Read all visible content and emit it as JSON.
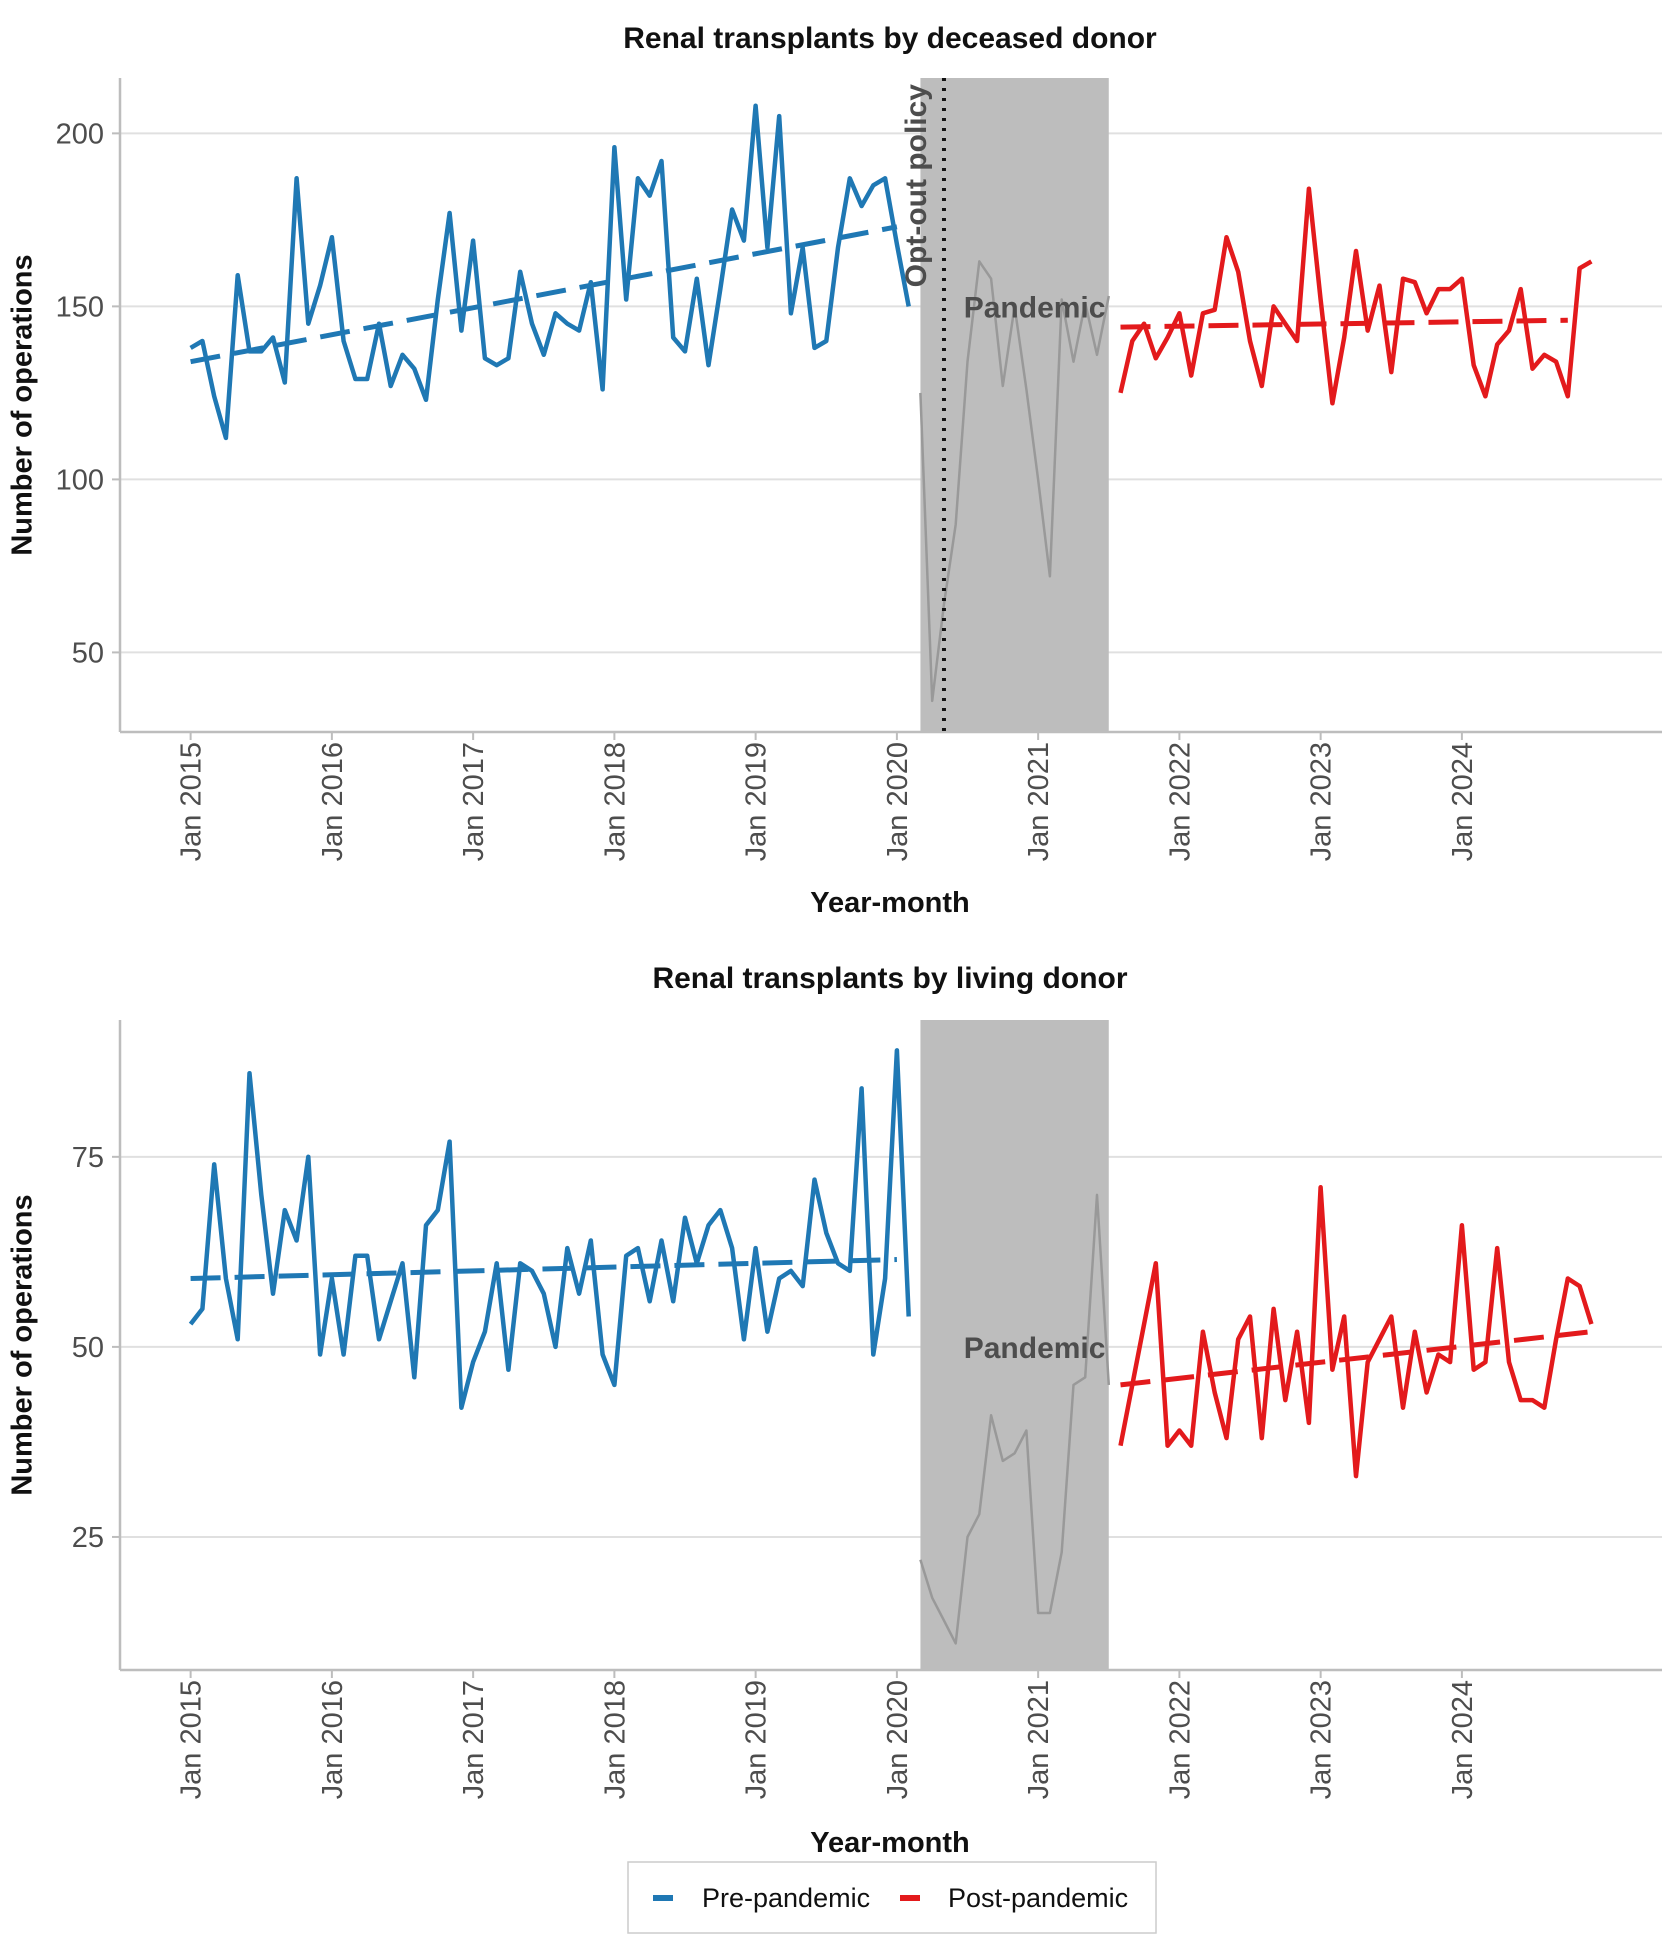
{
  "chart_data": [
    {
      "type": "line",
      "title": "Renal transplants by deceased donor",
      "xlabel": "Year-month",
      "ylabel": "Number of operations",
      "xlim": [
        "2014-07",
        "2025-06"
      ],
      "ylim": [
        27,
        216
      ],
      "yticks": [
        50,
        100,
        150,
        200
      ],
      "xticks": [
        "Jan 2015",
        "Jan 2016",
        "Jan 2017",
        "Jan 2018",
        "Jan 2019",
        "Jan 2020",
        "Jan 2021",
        "Jan 2022",
        "Jan 2023",
        "Jan 2024"
      ],
      "grid": "horizontal",
      "shaded_region": {
        "start": "2020-03",
        "end": "2021-07",
        "label": "Pandemic",
        "color": "#bdbdbd"
      },
      "vline": {
        "x": "2020-05",
        "label": "Opt-out policy",
        "style": "dotted"
      },
      "series": [
        {
          "name": "Pre-pandemic",
          "color": "#1f78b4",
          "style": "solid",
          "start": "2015-01",
          "values": [
            138,
            140,
            124,
            112,
            159,
            137,
            137,
            141,
            128,
            187,
            145,
            156,
            170,
            140,
            129,
            129,
            145,
            127,
            136,
            132,
            123,
            152,
            177,
            143,
            169,
            135,
            133,
            135,
            160,
            145,
            136,
            148,
            145,
            143,
            157,
            126,
            196,
            152,
            187,
            182,
            192,
            141,
            137,
            158,
            133,
            155,
            178,
            169,
            208,
            167,
            205,
            148,
            167,
            138,
            140,
            167,
            187,
            179,
            185,
            187,
            168,
            150
          ]
        },
        {
          "name": "Pandemic period",
          "color": "#999999",
          "style": "solid",
          "start": "2020-03",
          "values": [
            125,
            36,
            64,
            87,
            134,
            163,
            158,
            127,
            150,
            126,
            100,
            72,
            152,
            134,
            151,
            136,
            153
          ]
        },
        {
          "name": "Post-pandemic",
          "color": "#e31a1c",
          "style": "solid",
          "start": "2021-08",
          "values": [
            125,
            140,
            145,
            135,
            141,
            148,
            130,
            148,
            149,
            170,
            160,
            140,
            127,
            150,
            145,
            140,
            184,
            152,
            122,
            141,
            166,
            143,
            156,
            131,
            158,
            157,
            148,
            155,
            155,
            158,
            133,
            124,
            139,
            143,
            155,
            132,
            136,
            134,
            124,
            161,
            163
          ]
        },
        {
          "name": "Pre-pandemic trend",
          "color": "#1f78b4",
          "style": "dashed",
          "x": [
            "2015-01",
            "2020-01"
          ],
          "y": [
            134,
            173
          ]
        },
        {
          "name": "Post-pandemic trend",
          "color": "#e31a1c",
          "style": "dashed",
          "x": [
            "2021-08",
            "2024-10"
          ],
          "y": [
            144,
            146
          ]
        }
      ]
    },
    {
      "type": "line",
      "title": "Renal transplants by living donor",
      "xlabel": "Year-month",
      "ylabel": "Number of operations",
      "xlim": [
        "2014-07",
        "2025-06"
      ],
      "ylim": [
        7.5,
        93
      ],
      "yticks": [
        25,
        50,
        75
      ],
      "xticks": [
        "Jan 2015",
        "Jan 2016",
        "Jan 2017",
        "Jan 2018",
        "Jan 2019",
        "Jan 2020",
        "Jan 2021",
        "Jan 2022",
        "Jan 2023",
        "Jan 2024"
      ],
      "grid": "horizontal",
      "shaded_region": {
        "start": "2020-03",
        "end": "2021-07",
        "label": "Pandemic",
        "color": "#bdbdbd"
      },
      "series": [
        {
          "name": "Pre-pandemic",
          "color": "#1f78b4",
          "style": "solid",
          "start": "2015-01",
          "values": [
            53,
            55,
            74,
            59,
            51,
            86,
            70,
            57,
            68,
            64,
            75,
            49,
            59,
            49,
            62,
            62,
            51,
            56,
            61,
            46,
            66,
            68,
            77,
            42,
            48,
            52,
            61,
            47,
            61,
            60,
            57,
            50,
            63,
            57,
            64,
            49,
            45,
            62,
            63,
            56,
            64,
            56,
            67,
            61,
            66,
            68,
            63,
            51,
            63,
            52,
            59,
            60,
            58,
            72,
            65,
            61,
            60,
            84,
            49,
            59,
            89,
            54
          ]
        },
        {
          "name": "Pandemic period",
          "color": "#999999",
          "style": "solid",
          "start": "2020-03",
          "values": [
            22,
            17,
            14,
            11,
            25,
            28,
            41,
            35,
            36,
            39,
            15,
            15,
            23,
            45,
            46,
            70,
            45
          ]
        },
        {
          "name": "Post-pandemic",
          "color": "#e31a1c",
          "style": "solid",
          "start": "2021-08",
          "values": [
            37,
            45,
            53,
            61,
            37,
            39,
            37,
            52,
            44,
            38,
            51,
            54,
            38,
            55,
            43,
            52,
            40,
            71,
            47,
            54,
            33,
            48,
            51,
            54,
            42,
            52,
            44,
            49,
            48,
            66,
            47,
            48,
            63,
            48,
            43,
            43,
            42,
            51,
            59,
            58,
            53
          ]
        },
        {
          "name": "Pre-pandemic trend",
          "color": "#1f78b4",
          "style": "dashed",
          "x": [
            "2015-01",
            "2020-01"
          ],
          "y": [
            59,
            61.5
          ]
        },
        {
          "name": "Post-pandemic trend",
          "color": "#e31a1c",
          "style": "dashed",
          "x": [
            "2021-08",
            "2024-12"
          ],
          "y": [
            45,
            52
          ]
        }
      ]
    }
  ],
  "legend": {
    "position": "bottom",
    "items": [
      {
        "label": "Pre-pandemic",
        "color": "#1f78b4"
      },
      {
        "label": "Post-pandemic",
        "color": "#e31a1c"
      }
    ]
  }
}
